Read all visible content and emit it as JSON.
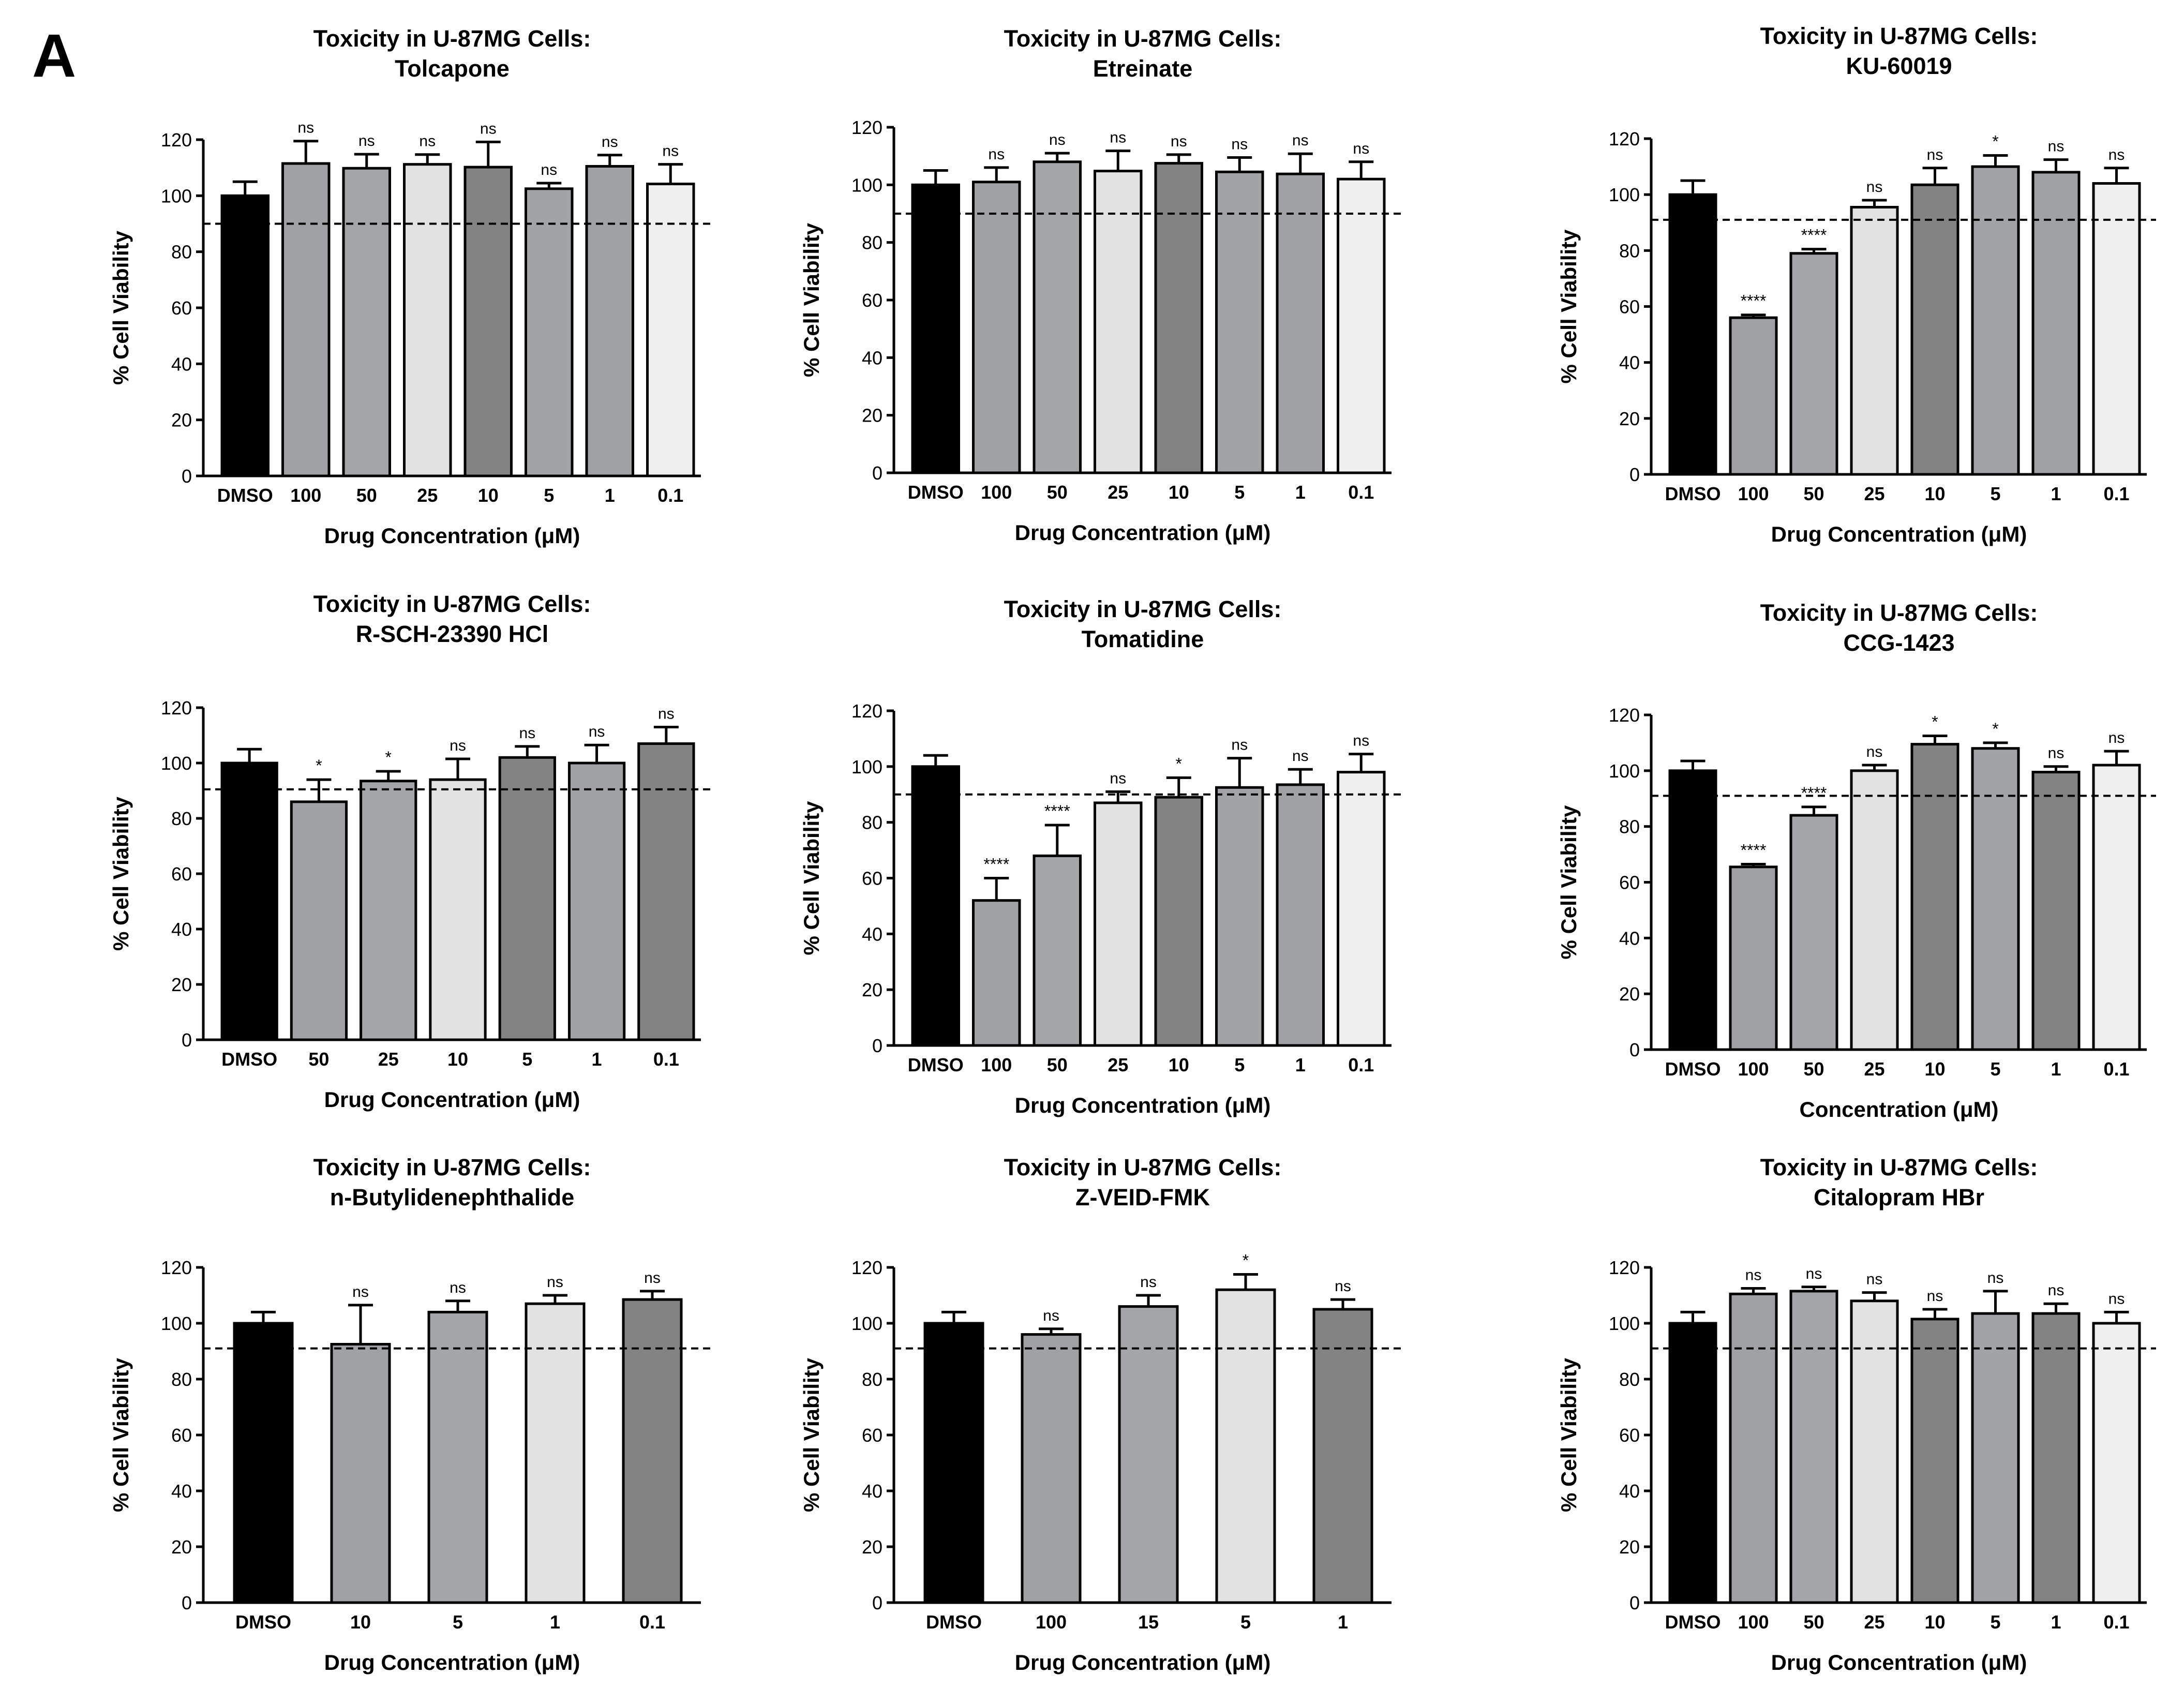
{
  "figure": {
    "panel_label": "A"
  },
  "chart_data": [
    {
      "type": "bar",
      "title_line1": "Toxicity in U-87MG Cells:",
      "title_line2": "Tolcapone",
      "xlabel": "Drug Concentration (μM)",
      "ylabel": "% Cell Viability",
      "ylim": [
        0,
        120
      ],
      "yticks": [
        0,
        20,
        40,
        60,
        80,
        100,
        120
      ],
      "reference_line": 90,
      "categories": [
        "DMSO",
        "100",
        "50",
        "25",
        "10",
        "5",
        "1",
        "0.1"
      ],
      "values": [
        100,
        111.5,
        109.8,
        111.2,
        110.2,
        102.5,
        110.5,
        104.2
      ],
      "errors": [
        5,
        8,
        5,
        3.5,
        9,
        2,
        4,
        7
      ],
      "significance": [
        "",
        "ns",
        "ns",
        "ns",
        "ns",
        "ns",
        "ns",
        "ns"
      ],
      "colors": [
        "#000000",
        "#a0a1a5",
        "#a4a5a8",
        "#e2e2e2",
        "#838383",
        "#a2a3a6",
        "#a0a1a4",
        "#efefef"
      ]
    },
    {
      "type": "bar",
      "title_line1": "Toxicity in U-87MG Cells:",
      "title_line2": "Etreinate",
      "xlabel": "Drug Concentration (μM)",
      "ylabel": "% Cell Viability",
      "ylim": [
        0,
        120
      ],
      "yticks": [
        0,
        20,
        40,
        60,
        80,
        100,
        120
      ],
      "reference_line": 90,
      "categories": [
        "DMSO",
        "100",
        "50",
        "25",
        "10",
        "5",
        "1",
        "0.1"
      ],
      "values": [
        100,
        101,
        108,
        104.8,
        107.5,
        104.5,
        103.8,
        102
      ],
      "errors": [
        5,
        5,
        3,
        7,
        3,
        5,
        7,
        6
      ],
      "significance": [
        "",
        "ns",
        "ns",
        "ns",
        "ns",
        "ns",
        "ns",
        "ns"
      ],
      "colors": [
        "#000000",
        "#a0a1a5",
        "#a4a5a8",
        "#e2e2e2",
        "#838383",
        "#a2a3a6",
        "#a0a1a4",
        "#efefef"
      ]
    },
    {
      "type": "bar",
      "title_line1": "Toxicity in U-87MG Cells:",
      "title_line2": "KU-60019",
      "xlabel": "Drug Concentration (μM)",
      "ylabel": "% Cell Viability",
      "ylim": [
        0,
        120
      ],
      "yticks": [
        0,
        20,
        40,
        60,
        80,
        100,
        120
      ],
      "reference_line": 91,
      "categories": [
        "DMSO",
        "100",
        "50",
        "25",
        "10",
        "5",
        "1",
        "0.1"
      ],
      "values": [
        100,
        56,
        79,
        95.5,
        103.5,
        110,
        108,
        104
      ],
      "errors": [
        5,
        1,
        1.5,
        2.5,
        6,
        4,
        4.5,
        5.5
      ],
      "significance": [
        "",
        "****",
        "****",
        "ns",
        "ns",
        "*",
        "ns",
        "ns"
      ],
      "colors": [
        "#000000",
        "#a0a1a5",
        "#a4a5a8",
        "#e2e2e2",
        "#838383",
        "#a2a3a6",
        "#a0a1a4",
        "#efefef"
      ]
    },
    {
      "type": "bar",
      "title_line1": "Toxicity in U-87MG Cells:",
      "title_line2": "R-SCH-23390 HCl",
      "xlabel": "Drug Concentration (μM)",
      "ylabel": "% Cell Viability",
      "ylim": [
        0,
        120
      ],
      "yticks": [
        0,
        20,
        40,
        60,
        80,
        100,
        120
      ],
      "reference_line": 90.5,
      "categories": [
        "DMSO",
        "50",
        "25",
        "10",
        "5",
        "1",
        "0.1"
      ],
      "values": [
        100,
        86,
        93.5,
        94,
        102,
        100,
        107
      ],
      "errors": [
        5,
        8,
        3.5,
        7.5,
        4,
        6.5,
        6
      ],
      "significance": [
        "",
        "*",
        "*",
        "ns",
        "ns",
        "ns",
        "ns"
      ],
      "colors": [
        "#000000",
        "#a0a1a5",
        "#a4a5a8",
        "#e2e2e2",
        "#838383",
        "#a0a1a4",
        "#838383"
      ]
    },
    {
      "type": "bar",
      "title_line1": "Toxicity in U-87MG Cells:",
      "title_line2": "Tomatidine",
      "xlabel": "Drug Concentration (μM)",
      "ylabel": "% Cell Viability",
      "ylim": [
        0,
        120
      ],
      "yticks": [
        0,
        20,
        40,
        60,
        80,
        100,
        120
      ],
      "reference_line": 90,
      "categories": [
        "DMSO",
        "100",
        "50",
        "25",
        "10",
        "5",
        "1",
        "0.1"
      ],
      "values": [
        100,
        52,
        68,
        87,
        89,
        92.5,
        93.5,
        98
      ],
      "errors": [
        4,
        8,
        11,
        4,
        7,
        10.5,
        5.5,
        6.5
      ],
      "significance": [
        "",
        "****",
        "****",
        "ns",
        "*",
        "ns",
        "ns",
        "ns"
      ],
      "colors": [
        "#000000",
        "#a0a1a5",
        "#a4a5a8",
        "#e2e2e2",
        "#838383",
        "#a2a3a6",
        "#a0a1a4",
        "#efefef"
      ]
    },
    {
      "type": "bar",
      "title_line1": "Toxicity in U-87MG Cells:",
      "title_line2": "CCG-1423",
      "xlabel": "Concentration (μM)",
      "ylabel": "% Cell Viability",
      "ylim": [
        0,
        120
      ],
      "yticks": [
        0,
        20,
        40,
        60,
        80,
        100,
        120
      ],
      "reference_line": 91,
      "categories": [
        "DMSO",
        "100",
        "50",
        "25",
        "10",
        "5",
        "1",
        "0.1"
      ],
      "values": [
        100,
        65.5,
        84,
        100,
        109.5,
        108,
        99.5,
        102
      ],
      "errors": [
        3.5,
        1,
        3,
        2,
        3,
        2,
        2,
        5
      ],
      "significance": [
        "",
        "****",
        "****",
        "ns",
        "*",
        "*",
        "ns",
        "ns"
      ],
      "colors": [
        "#000000",
        "#a0a1a5",
        "#a4a5a8",
        "#e2e2e2",
        "#838383",
        "#a2a3a6",
        "#838383",
        "#efefef"
      ]
    },
    {
      "type": "bar",
      "title_line1": "Toxicity in U-87MG Cells:",
      "title_line2": "n-Butylidenephthalide",
      "xlabel": "Drug Concentration (μM)",
      "ylabel": "% Cell Viability",
      "ylim": [
        0,
        120
      ],
      "yticks": [
        0,
        20,
        40,
        60,
        80,
        100,
        120
      ],
      "reference_line": 91,
      "categories": [
        "DMSO",
        "10",
        "5",
        "1",
        "0.1"
      ],
      "values": [
        100,
        92.5,
        104,
        107,
        108.5
      ],
      "errors": [
        4,
        14,
        4,
        3,
        3
      ],
      "significance": [
        "",
        "ns",
        "ns",
        "ns",
        "ns"
      ],
      "colors": [
        "#000000",
        "#a0a1a5",
        "#a4a5a8",
        "#e2e2e2",
        "#838383"
      ]
    },
    {
      "type": "bar",
      "title_line1": "Toxicity in U-87MG Cells:",
      "title_line2": "Z-VEID-FMK",
      "xlabel": "Drug Concentration (μM)",
      "ylabel": "% Cell Viability",
      "ylim": [
        0,
        120
      ],
      "yticks": [
        0,
        20,
        40,
        60,
        80,
        100,
        120
      ],
      "reference_line": 91,
      "categories": [
        "DMSO",
        "100",
        "15",
        "5",
        "1"
      ],
      "values": [
        100,
        96,
        106,
        112,
        105
      ],
      "errors": [
        4,
        2,
        4,
        5.5,
        3.5
      ],
      "significance": [
        "",
        "ns",
        "ns",
        "*",
        "ns"
      ],
      "colors": [
        "#000000",
        "#a0a1a5",
        "#a4a5a8",
        "#e2e2e2",
        "#838383"
      ]
    },
    {
      "type": "bar",
      "title_line1": "Toxicity in U-87MG Cells:",
      "title_line2": "Citalopram HBr",
      "xlabel": "Drug Concentration (μM)",
      "ylabel": "% Cell Viability",
      "ylim": [
        0,
        120
      ],
      "yticks": [
        0,
        20,
        40,
        60,
        80,
        100,
        120
      ],
      "reference_line": 91,
      "categories": [
        "DMSO",
        "100",
        "50",
        "25",
        "10",
        "5",
        "1",
        "0.1"
      ],
      "values": [
        100,
        110.5,
        111.5,
        108,
        101.5,
        103.5,
        103.5,
        100
      ],
      "errors": [
        4,
        2,
        1.5,
        3,
        3.5,
        8,
        3.5,
        4
      ],
      "significance": [
        "",
        "ns",
        "ns",
        "ns",
        "ns",
        "ns",
        "ns",
        "ns"
      ],
      "colors": [
        "#000000",
        "#a0a1a5",
        "#a4a5a8",
        "#e2e2e2",
        "#838383",
        "#a2a3a6",
        "#838383",
        "#efefef"
      ]
    }
  ]
}
